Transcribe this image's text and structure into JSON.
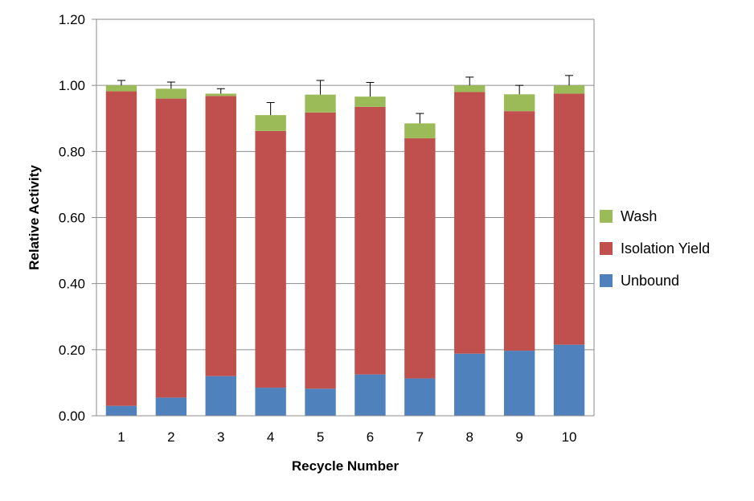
{
  "chart_data": {
    "type": "bar",
    "stacked": true,
    "categories": [
      "1",
      "2",
      "3",
      "4",
      "5",
      "6",
      "7",
      "8",
      "9",
      "10"
    ],
    "series": [
      {
        "name": "Unbound",
        "color": "#4f81bd",
        "values": [
          0.03,
          0.055,
          0.12,
          0.085,
          0.082,
          0.125,
          0.113,
          0.188,
          0.197,
          0.215
        ]
      },
      {
        "name": "Isolation Yield",
        "color": "#c0504d",
        "values": [
          0.952,
          0.905,
          0.848,
          0.777,
          0.836,
          0.81,
          0.727,
          0.792,
          0.725,
          0.76
        ]
      },
      {
        "name": "Wash",
        "color": "#9bbb59",
        "values": [
          0.018,
          0.03,
          0.007,
          0.048,
          0.054,
          0.031,
          0.045,
          0.02,
          0.051,
          0.025
        ]
      }
    ],
    "error_bars_upper": [
      0.015,
      0.02,
      0.015,
      0.038,
      0.043,
      0.043,
      0.03,
      0.025,
      0.027,
      0.03
    ],
    "error_bar_color": "#000000",
    "xlabel": "Recycle Number",
    "ylabel": "Relative Activity",
    "ylim": [
      0,
      1.2
    ],
    "yticks": [
      "0.00",
      "0.20",
      "0.40",
      "0.60",
      "0.80",
      "1.00",
      "1.20"
    ],
    "ytick_values": [
      0,
      0.2,
      0.4,
      0.6,
      0.8,
      1.0,
      1.2
    ],
    "grid": "horizontal",
    "legend_position": "right",
    "legend_order": [
      "Wash",
      "Isolation Yield",
      "Unbound"
    ]
  }
}
